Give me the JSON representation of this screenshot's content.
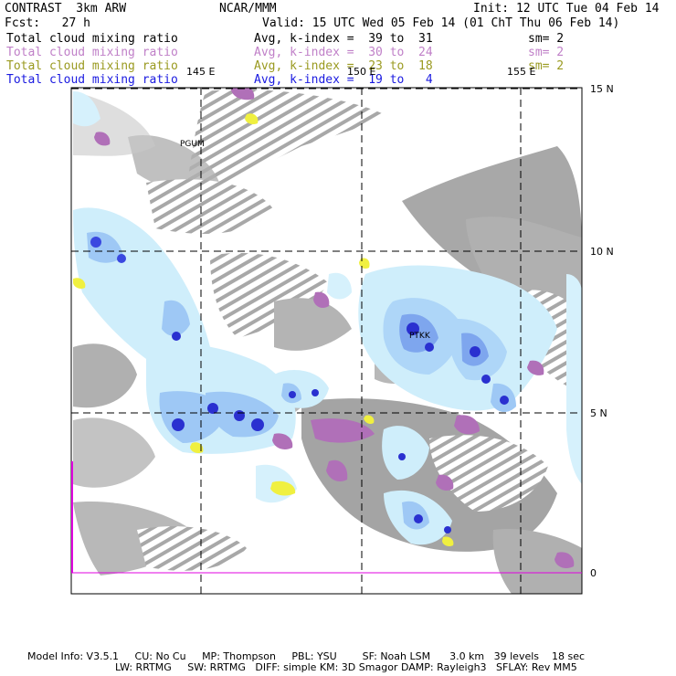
{
  "header": {
    "model": "CONTRAST  3km ARW",
    "org": "NCAR/MMM",
    "init": "Init: 12 UTC Tue 04 Feb 14",
    "fcst": "Fcst:   27 h",
    "valid": "Valid: 15 UTC Wed 05 Feb 14 (01 ChT Thu 06 Feb 14)"
  },
  "fields": [
    {
      "name": "Total cloud mixing ratio",
      "kindex": "Avg, k-index =  39 to  31",
      "sm": "sm= 2",
      "color": "#000000"
    },
    {
      "name": "Total cloud mixing ratio",
      "kindex": "Avg, k-index =  30 to  24",
      "sm": "sm= 2",
      "color": "#c080c8"
    },
    {
      "name": "Total cloud mixing ratio",
      "kindex": "Avg, k-index =  23 to  18",
      "sm": "sm= 2",
      "color": "#9a9a20"
    },
    {
      "name": "Total cloud mixing ratio",
      "kindex": "Avg, k-index =  19 to   4",
      "sm": "",
      "color": "#1a1ae0"
    }
  ],
  "map": {
    "lon_labels": [
      "145 E",
      "150 E",
      "155 E"
    ],
    "lat_labels": [
      "15 N",
      "10 N",
      "5 N",
      "0"
    ],
    "stations": [
      "PGUM",
      "PTKK"
    ]
  },
  "footer": {
    "line1": "Model Info: V3.5.1     CU: No Cu     MP: Thompson     PBL: YSU        SF: Noah LSM      3.0 km   39 levels    18 sec",
    "line2": "LW: RRTMG     SW: RRTMG   DIFF: simple KM: 3D Smagor DAMP: Rayleigh3   SFLAY: Rev MM5"
  }
}
